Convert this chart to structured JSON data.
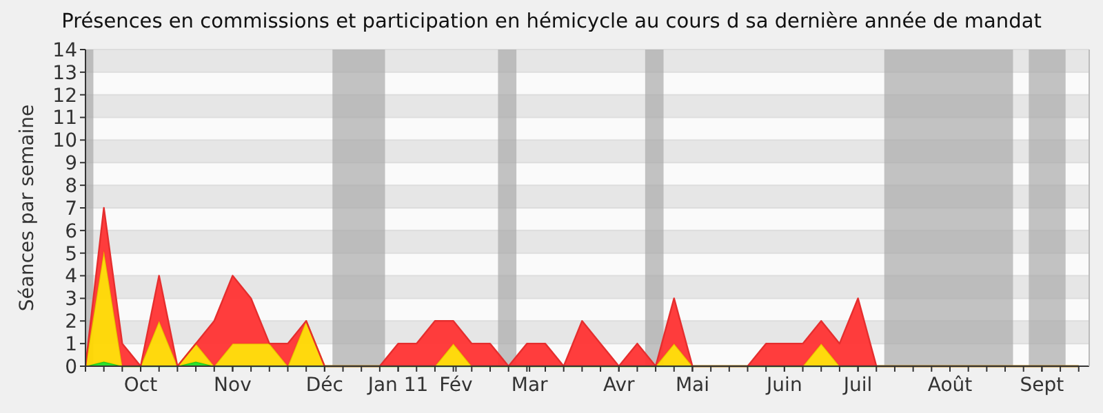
{
  "chart_data": {
    "type": "area",
    "stacked": true,
    "title": "Présences en commissions et participation en hémicycle au cours d sa dernière année de mandat",
    "ylabel": "Séances par semaine",
    "x": [
      "2010-09-13",
      "2010-09-20",
      "2010-09-27",
      "2010-10-04",
      "2010-10-11",
      "2010-10-18",
      "2010-10-25",
      "2010-11-01",
      "2010-11-08",
      "2010-11-15",
      "2010-11-22",
      "2010-11-29",
      "2010-12-06",
      "2010-12-13",
      "2010-12-20",
      "2010-12-27",
      "2011-01-03",
      "2011-01-10",
      "2011-01-17",
      "2011-01-24",
      "2011-01-31",
      "2011-02-07",
      "2011-02-14",
      "2011-02-21",
      "2011-02-28",
      "2011-03-07",
      "2011-03-14",
      "2011-03-21",
      "2011-03-28",
      "2011-04-04",
      "2011-04-11",
      "2011-04-18",
      "2011-04-25",
      "2011-05-02",
      "2011-05-09",
      "2011-05-16",
      "2011-05-23",
      "2011-05-30",
      "2011-06-06",
      "2011-06-13",
      "2011-06-20",
      "2011-06-27",
      "2011-07-04",
      "2011-07-11",
      "2011-07-18",
      "2011-07-25",
      "2011-08-01",
      "2011-08-08",
      "2011-08-15",
      "2011-08-22",
      "2011-08-29",
      "2011-09-05",
      "2011-09-12",
      "2011-09-19",
      "2011-09-26"
    ],
    "series": [
      {
        "color": "#22dd22",
        "values": [
          0,
          0.2,
          0,
          0,
          0,
          0,
          0.2,
          0,
          0,
          0,
          0,
          0,
          0,
          0,
          0,
          0,
          0,
          0,
          0,
          0,
          0,
          0,
          0,
          0,
          0,
          0,
          0,
          0,
          0,
          0,
          0,
          0,
          0,
          0,
          0,
          0,
          0,
          0,
          0,
          0,
          0,
          0,
          0,
          0,
          0,
          0,
          0,
          0,
          0,
          0,
          0,
          0,
          0,
          0,
          0
        ]
      },
      {
        "color": "#ffd700",
        "values": [
          0,
          4.9,
          0,
          0,
          2,
          0,
          0.8,
          0,
          1,
          1,
          1,
          0,
          2,
          0,
          0,
          0,
          0,
          0,
          0,
          0,
          1,
          0,
          0,
          0,
          0,
          0,
          0,
          0,
          0,
          0,
          0,
          0,
          1,
          0,
          0,
          0,
          0,
          0,
          0,
          0,
          1,
          0,
          0,
          0,
          0,
          0,
          0,
          0,
          0,
          0,
          0,
          0,
          0,
          0,
          0
        ]
      },
      {
        "color": "#ff3333",
        "values": [
          0,
          1.9,
          1,
          0,
          2,
          0,
          0,
          2,
          3,
          2,
          0,
          1,
          0,
          0,
          0,
          0,
          0,
          1,
          1,
          2,
          1,
          1,
          1,
          0,
          1,
          1,
          0,
          2,
          1,
          0,
          1,
          0,
          2,
          0,
          0,
          0,
          0,
          1,
          1,
          1,
          1,
          1,
          3,
          0,
          0,
          0,
          0,
          0,
          0,
          0,
          0,
          0,
          0,
          0,
          0
        ]
      }
    ],
    "xlim": [
      "2010-09-13",
      "2011-09-30"
    ],
    "xticks": [
      {
        "value": "2010-10-04",
        "label": "Oct"
      },
      {
        "value": "2010-11-08",
        "label": "Nov"
      },
      {
        "value": "2010-12-13",
        "label": "Déc"
      },
      {
        "value": "2011-01-10",
        "label": "Jan 11"
      },
      {
        "value": "2011-02-01",
        "label": "Fév"
      },
      {
        "value": "2011-03-01",
        "label": "Mar"
      },
      {
        "value": "2011-04-04",
        "label": "Avr"
      },
      {
        "value": "2011-05-02",
        "label": "Mai"
      },
      {
        "value": "2011-06-06",
        "label": "Juin"
      },
      {
        "value": "2011-07-04",
        "label": "Juil"
      },
      {
        "value": "2011-08-08",
        "label": "Août"
      },
      {
        "value": "2011-09-12",
        "label": "Sept"
      }
    ],
    "ylim": [
      0,
      14
    ],
    "yticks": [
      0,
      1,
      2,
      3,
      4,
      5,
      6,
      7,
      8,
      9,
      10,
      11,
      12,
      13,
      14
    ],
    "grid": "y",
    "bands": [
      {
        "axis": "x",
        "from": "2010-09-13",
        "to": "2010-09-16",
        "color": "#aaaaaa"
      },
      {
        "axis": "x",
        "from": "2010-12-16",
        "to": "2011-01-05",
        "color": "#aaaaaa"
      },
      {
        "axis": "x",
        "from": "2011-02-17",
        "to": "2011-02-24",
        "color": "#aaaaaa"
      },
      {
        "axis": "x",
        "from": "2011-04-14",
        "to": "2011-04-21",
        "color": "#aaaaaa"
      },
      {
        "axis": "x",
        "from": "2011-07-14",
        "to": "2011-09-01",
        "color": "#aaaaaa"
      },
      {
        "axis": "x",
        "from": "2011-09-07",
        "to": "2011-09-21",
        "color": "#aaaaaa"
      }
    ]
  }
}
